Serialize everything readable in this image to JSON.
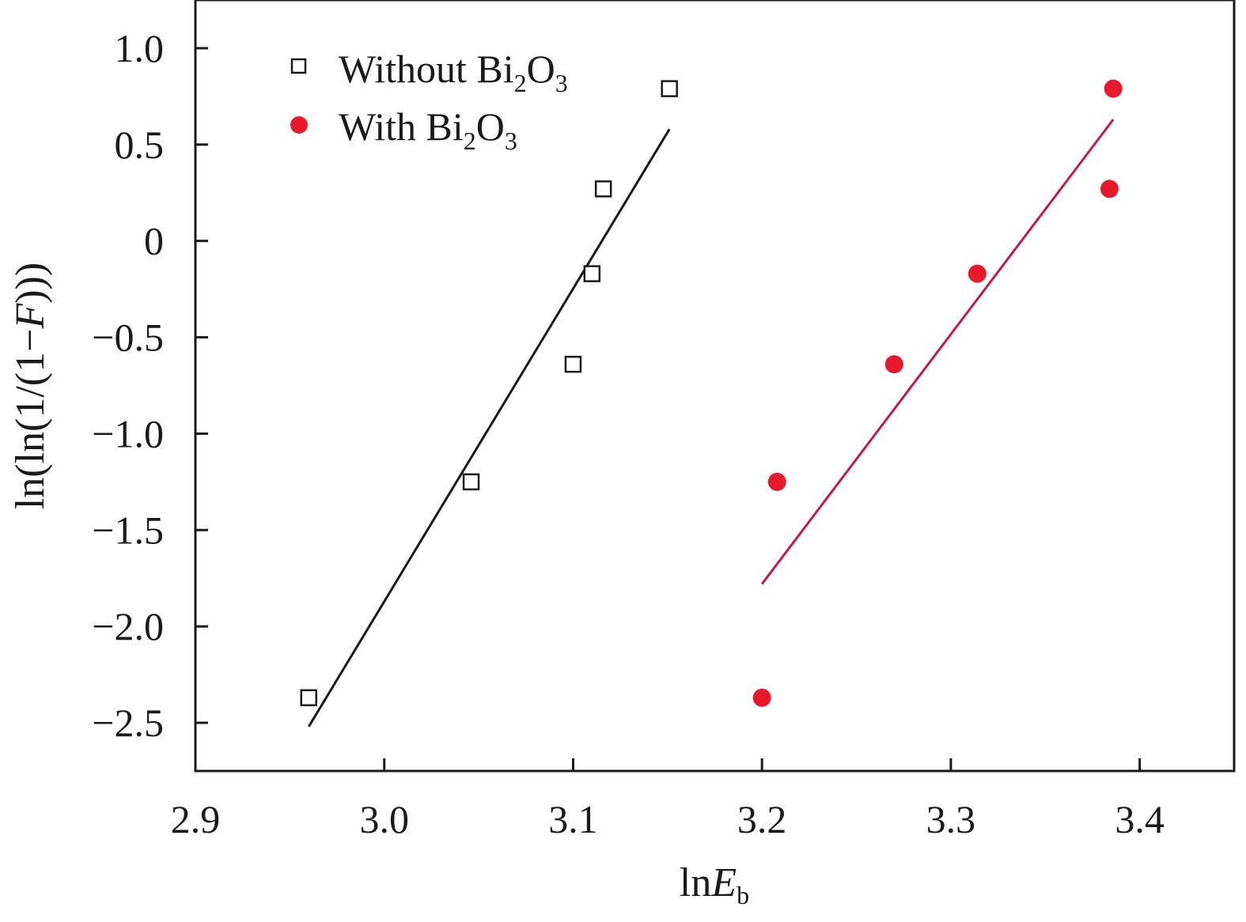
{
  "chart_data": {
    "type": "scatter",
    "title": "",
    "xlabel_parts": [
      "ln",
      "E",
      "b"
    ],
    "ylabel_parts": [
      "ln(ln(1/(1−",
      "F",
      ")))"
    ],
    "xlim": [
      2.9,
      3.45
    ],
    "ylim": [
      -2.75,
      1.25
    ],
    "x_ticks": [
      2.9,
      3.0,
      3.1,
      3.2,
      3.3,
      3.4
    ],
    "x_tick_labels": [
      "2.9",
      "3.0",
      "3.1",
      "3.2",
      "3.3",
      "3.4"
    ],
    "y_ticks": [
      1.0,
      0.5,
      0.0,
      -0.5,
      -1.0,
      -1.5,
      -2.0,
      -2.5
    ],
    "y_tick_labels": [
      "1.0",
      "0.5",
      "0",
      "−0.5",
      "−1.0",
      "−1.5",
      "−2.0",
      "−2.5"
    ],
    "grid": false,
    "legend_position": "top-left",
    "series": [
      {
        "name": "Without Bi2O3",
        "legend_parts": [
          "Without Bi",
          "2",
          "O",
          "3"
        ],
        "marker": "open-square",
        "color": "#1a1a1a",
        "x": [
          2.96,
          3.046,
          3.1,
          3.11,
          3.116,
          3.151
        ],
        "y": [
          -2.37,
          -1.25,
          -0.64,
          -0.17,
          0.27,
          0.79
        ],
        "fit_line": {
          "x": [
            2.96,
            3.151
          ],
          "y": [
            -2.52,
            0.58
          ]
        }
      },
      {
        "name": "With Bi2O3",
        "legend_parts": [
          "With Bi",
          "2",
          "O",
          "3"
        ],
        "marker": "filled-circle",
        "color": "#e8192c",
        "line_color": "#c8174a",
        "x": [
          3.2,
          3.208,
          3.27,
          3.314,
          3.384,
          3.386
        ],
        "y": [
          -2.37,
          -1.25,
          -0.64,
          -0.17,
          0.27,
          0.79
        ],
        "fit_line": {
          "x": [
            3.2,
            3.386
          ],
          "y": [
            -1.78,
            0.63
          ]
        }
      }
    ]
  }
}
